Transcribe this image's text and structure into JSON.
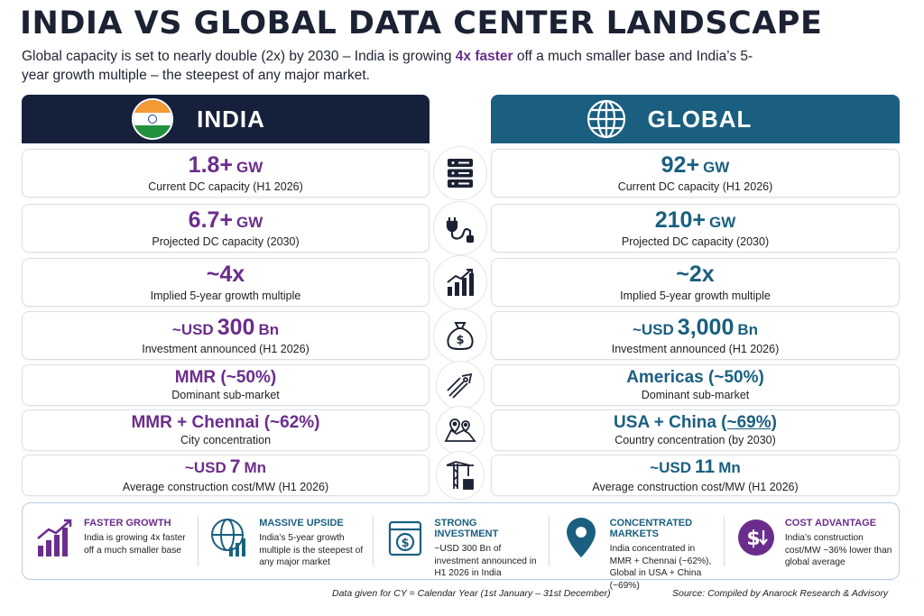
{
  "title": "INDIA VS GLOBAL DATA CENTER LANDSCAPE",
  "subtitle": {
    "part1": "Global capacity is set to nearly double (2x) by 2030 – India is growing ",
    "highlight": "4x faster",
    "part2": " off a much smaller base and India’s 5-year growth multiple – the steepest of any major market."
  },
  "india": {
    "header": "INDIA",
    "icon": "india-flag-icon"
  },
  "global": {
    "header": "GLOBAL",
    "icon": "globe-icon"
  },
  "rows": [
    {
      "icon": "server-rack-icon",
      "india": {
        "prefix": "",
        "value": "1.8+",
        "unit": "GW",
        "label": "Current DC capacity (H1 2026)"
      },
      "global": {
        "prefix": "",
        "value": "92+",
        "unit": "GW",
        "label": "Current DC capacity (H1 2026)"
      }
    },
    {
      "icon": "power-plug-icon",
      "india": {
        "prefix": "",
        "value": "6.7+",
        "unit": "GW",
        "label": "Projected DC capacity (2030)"
      },
      "global": {
        "prefix": "",
        "value": "210+",
        "unit": "GW",
        "label": "Projected DC capacity (2030)"
      }
    },
    {
      "icon": "growth-bars-icon",
      "india": {
        "prefix": "",
        "value": "~4x",
        "unit": "",
        "label": "Implied 5-year growth multiple"
      },
      "global": {
        "prefix": "",
        "value": "~2x",
        "unit": "",
        "label": "Implied 5-year growth multiple"
      }
    },
    {
      "icon": "money-bag-icon",
      "india": {
        "prefix": "~USD",
        "value": "300",
        "unit": "Bn",
        "label": "Investment announced (H1 2026)"
      },
      "global": {
        "prefix": "~USD",
        "value": "3,000",
        "unit": "Bn",
        "label": "Investment announced (H1 2026)"
      }
    },
    {
      "icon": "rocket-arrows-icon",
      "india": {
        "text": "MMR (~50%)",
        "label": "Dominant sub-market"
      },
      "global": {
        "text": "Americas (~50%)",
        "label": "Dominant sub-market"
      }
    },
    {
      "icon": "map-pins-icon",
      "india": {
        "text": "MMR + Chennai (~62%)",
        "label": "City concentration"
      },
      "global": {
        "text_a": "USA + China ",
        "text_b": "(~69%)",
        "label": "Country concentration (by 2030)"
      }
    },
    {
      "icon": "construction-crane-icon",
      "india": {
        "prefix": "~USD",
        "value": "7",
        "unit": "Mn",
        "label": "Average construction cost/MW (H1 2026)"
      },
      "global": {
        "prefix": "~USD",
        "value": "11",
        "unit": "Mn",
        "label": "Average construction cost/MW (H1 2026)"
      }
    }
  ],
  "insights": [
    {
      "icon": "growth-chart-icon",
      "title": "FASTER GROWTH",
      "text": "India is growing 4x faster off a much smaller base"
    },
    {
      "icon": "globe-growth-icon",
      "title": "MASSIVE UPSIDE",
      "text": "India’s 5-year growth multiple is the steepest of any major market"
    },
    {
      "icon": "money-document-icon",
      "title": "STRONG INVESTMENT",
      "text": "~USD 300 Bn of investment announced in H1 2026 in India"
    },
    {
      "icon": "location-pin-icon",
      "title": "CONCENTRATED MARKETS",
      "text": "India concentrated in MMR + Chennai (~62%), Global in USA + China (~69%)"
    },
    {
      "icon": "dollar-down-icon",
      "title": "COST ADVANTAGE",
      "text": "India’s construction cost/MW ~36% lower than global average"
    }
  ],
  "footer": {
    "note": "Data given for CY = Calendar Year (1st January – 31st December)",
    "source": "Source: Compiled by Anarock Research & Advisory"
  },
  "colors": {
    "india_header": "#15213b",
    "global_header": "#1a5f80",
    "india_accent": "#6b2d8c",
    "global_accent": "#1a5f80"
  }
}
